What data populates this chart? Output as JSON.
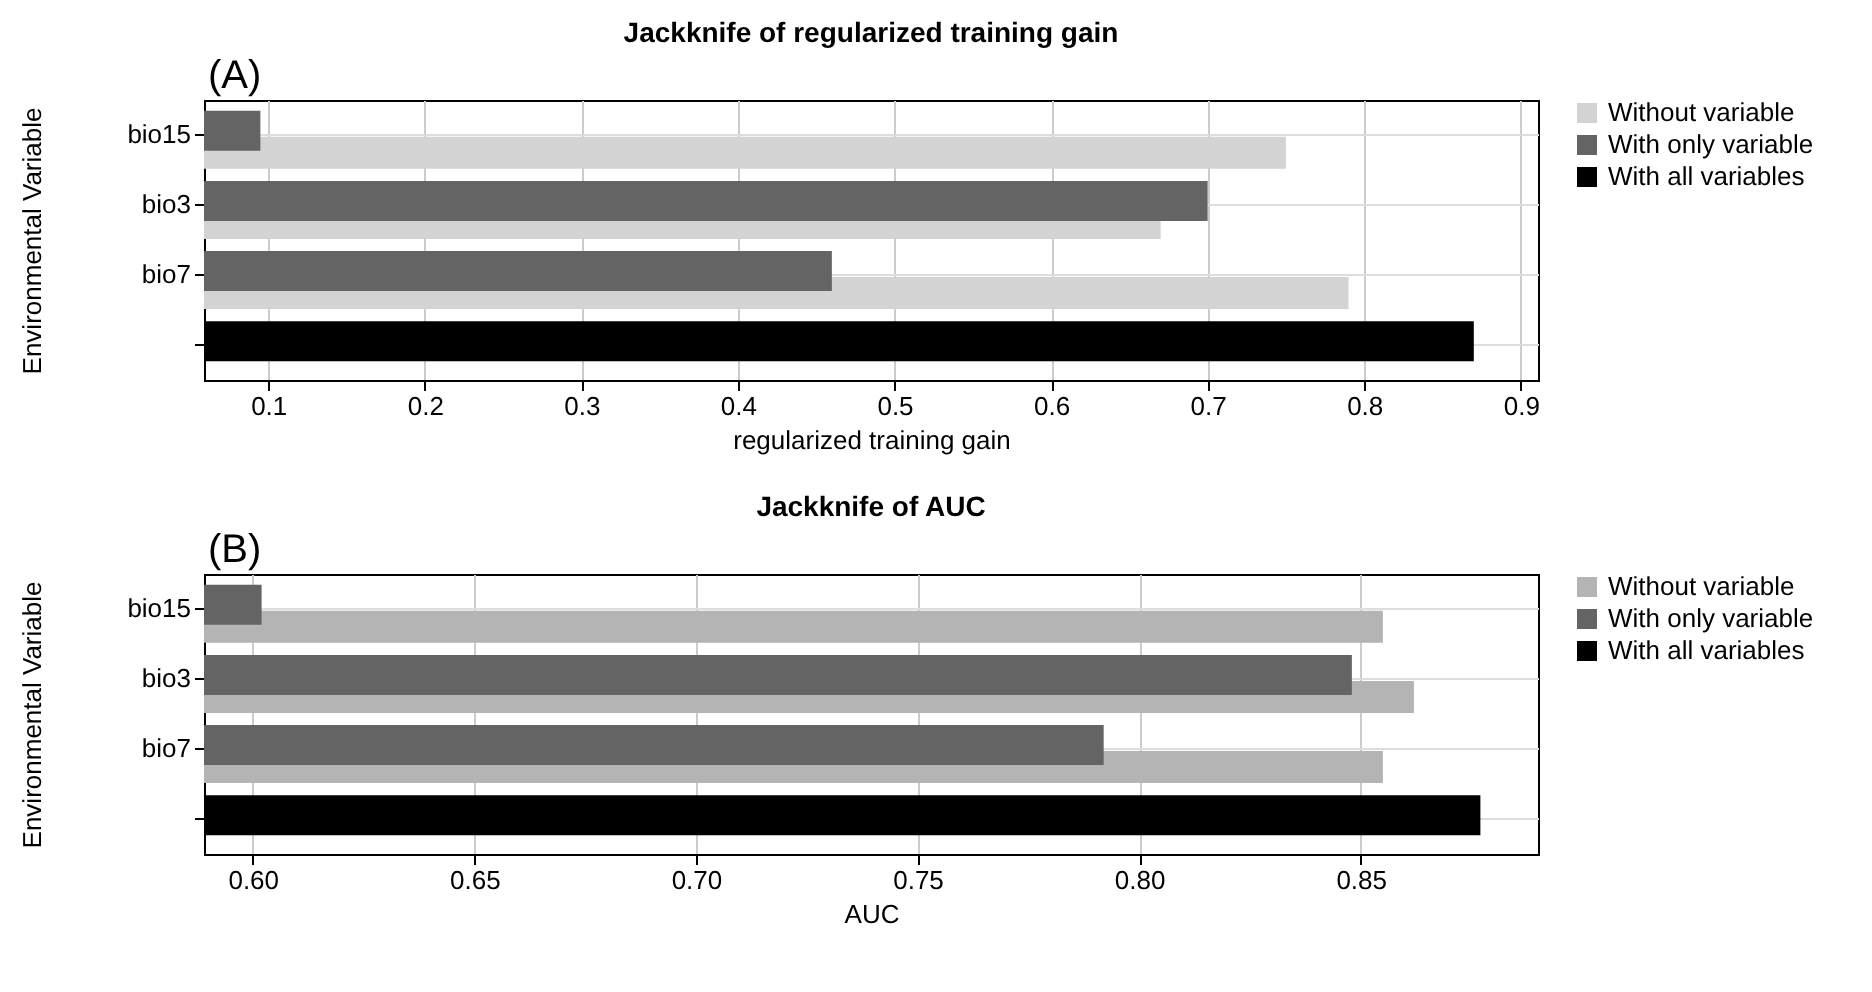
{
  "chart_data": [
    {
      "type": "bar",
      "orientation": "horizontal",
      "title": "Jackknife of regularized training gain",
      "xlabel": "regularized training gain",
      "ylabel": "Environmental Variable",
      "annotations": [
        "(A)"
      ],
      "categories": [
        "bio15",
        "bio3",
        "bio7",
        null
      ],
      "xlim": [
        0.059,
        0.911
      ],
      "xticks": [
        {
          "value": 0.1,
          "label": "0.1"
        },
        {
          "value": 0.2,
          "label": "0.2"
        },
        {
          "value": 0.3,
          "label": "0.3"
        },
        {
          "value": 0.4,
          "label": "0.4"
        },
        {
          "value": 0.5,
          "label": "0.5"
        },
        {
          "value": 0.6,
          "label": "0.6"
        },
        {
          "value": 0.7,
          "label": "0.7"
        },
        {
          "value": 0.8,
          "label": "0.8"
        },
        {
          "value": 0.9,
          "label": "0.9"
        }
      ],
      "grid": true,
      "legend": "right",
      "series": [
        {
          "name": "Without variable",
          "color": "#d3d3d3",
          "values": [
            0.75,
            0.67,
            0.79,
            null
          ]
        },
        {
          "name": "With only variable",
          "color": "#646464",
          "values": [
            0.095,
            0.7,
            0.46,
            null
          ]
        },
        {
          "name": "With all variables",
          "color": "#000000",
          "values": [
            null,
            null,
            null,
            0.87
          ]
        }
      ]
    },
    {
      "type": "bar",
      "orientation": "horizontal",
      "title": "Jackknife of AUC",
      "xlabel": "AUC",
      "ylabel": "Environmental Variable",
      "annotations": [
        "(B)"
      ],
      "categories": [
        "bio15",
        "bio3",
        "bio7",
        null
      ],
      "xlim": [
        0.589,
        0.89
      ],
      "xticks": [
        {
          "value": 0.6,
          "label": "0.60"
        },
        {
          "value": 0.65,
          "label": "0.65"
        },
        {
          "value": 0.7,
          "label": "0.70"
        },
        {
          "value": 0.75,
          "label": "0.75"
        },
        {
          "value": 0.8,
          "label": "0.80"
        },
        {
          "value": 0.85,
          "label": "0.85"
        }
      ],
      "grid": true,
      "legend": "right",
      "series": [
        {
          "name": "Without variable",
          "color": "#b4b4b4",
          "values": [
            0.855,
            0.862,
            0.855,
            null
          ]
        },
        {
          "name": "With only variable",
          "color": "#646464",
          "values": [
            0.602,
            0.848,
            0.792,
            null
          ]
        },
        {
          "name": "With all variables",
          "color": "#000000",
          "values": [
            null,
            null,
            null,
            0.877
          ]
        }
      ]
    }
  ]
}
